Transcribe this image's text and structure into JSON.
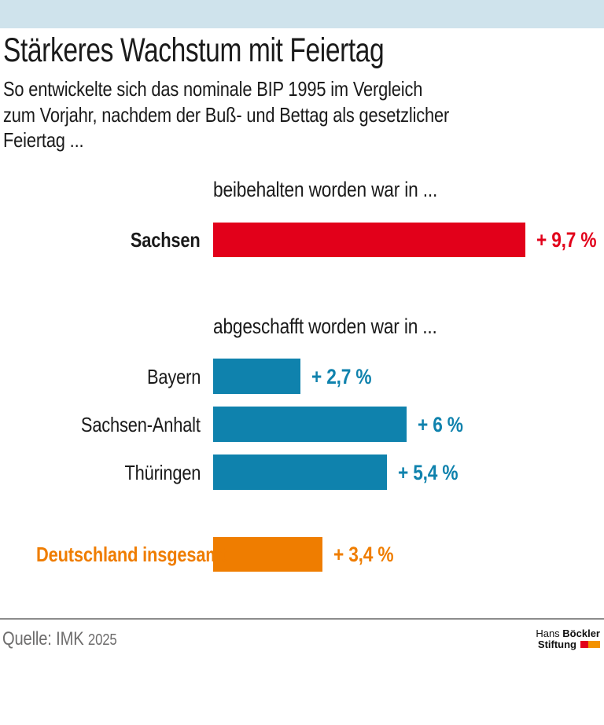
{
  "colors": {
    "accent_bar": "#cfe3ec",
    "ink": "#1a1a1a",
    "red": "#e2001a",
    "blue": "#0f82ad",
    "orange": "#ef7d00",
    "divider": "#8c8c8c",
    "source_gray": "#6e6d6d",
    "logo_red": "#e2001a",
    "logo_orange": "#f39200"
  },
  "chart_data": {
    "type": "bar",
    "orientation": "horizontal",
    "title": "Stärkeres Wachstum mit Feiertag",
    "subtitle_lines": [
      "So entwickelte sich das nominale BIP 1995 im Vergleich",
      "zum Vorjahr, nachdem der Buß- und Bettag als gesetzlicher",
      "Feiertag ..."
    ],
    "unit": "%",
    "xlim": [
      0,
      9.7
    ],
    "grid": false,
    "legend": false,
    "axes_hidden": true,
    "sections": [
      {
        "label": "beibehalten worden war in ...",
        "rows": [
          {
            "category": "Sachsen",
            "value": 9.7,
            "value_label": "+ 9,7 %",
            "bar_color": "#e2001a",
            "value_color": "#e2001a",
            "label_color": "#1a1a1a",
            "label_bold": true
          }
        ]
      },
      {
        "label": "abgeschafft worden war in ...",
        "rows": [
          {
            "category": "Bayern",
            "value": 2.7,
            "value_label": "+ 2,7 %",
            "bar_color": "#0f82ad",
            "value_color": "#0f82ad",
            "label_color": "#1a1a1a",
            "label_bold": false
          },
          {
            "category": "Sachsen-Anhalt",
            "value": 6,
            "value_label": "+ 6 %",
            "bar_color": "#0f82ad",
            "value_color": "#0f82ad",
            "label_color": "#1a1a1a",
            "label_bold": false
          },
          {
            "category": "Thüringen",
            "value": 5.4,
            "value_label": "+ 5,4 %",
            "bar_color": "#0f82ad",
            "value_color": "#0f82ad",
            "label_color": "#1a1a1a",
            "label_bold": false
          }
        ]
      },
      {
        "label": "",
        "rows": [
          {
            "category": "Deutschland insgesamt",
            "value": 3.4,
            "value_label": "+ 3,4 %",
            "bar_color": "#ef7d00",
            "value_color": "#ef7d00",
            "label_color": "#ef7d00",
            "label_bold": true
          }
        ]
      }
    ]
  },
  "footer": {
    "source_prefix": "Quelle: IMK ",
    "source_year": "2025",
    "logo": {
      "line1_regular": "Hans ",
      "line1_bold": "Böckler",
      "line2_bold": "Stiftung"
    }
  }
}
